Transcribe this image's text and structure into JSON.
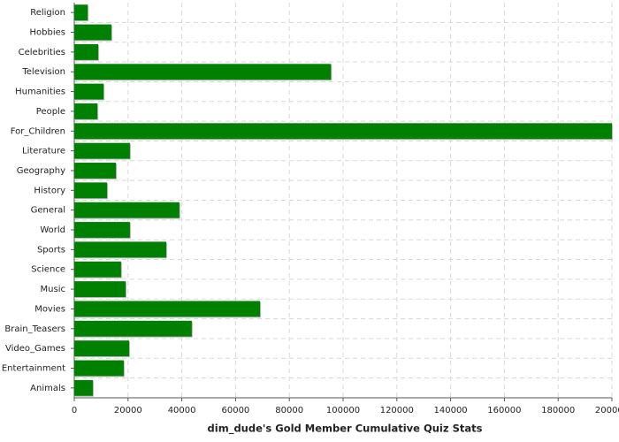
{
  "chart_data": {
    "type": "hbar",
    "title": "dim_dude's Gold Member Cumulative Quiz Stats",
    "categories": [
      "Religion",
      "Hobbies",
      "Celebrities",
      "Television",
      "Humanities",
      "People",
      "For_Children",
      "Literature",
      "Geography",
      "History",
      "General",
      "World",
      "Sports",
      "Science",
      "Music",
      "Movies",
      "Brain_Teasers",
      "Video_Games",
      "Entertainment",
      "Animals"
    ],
    "values": [
      5000,
      13800,
      8900,
      95500,
      10900,
      8600,
      200000,
      20700,
      15500,
      12200,
      39100,
      20700,
      34200,
      17400,
      19100,
      69100,
      43700,
      20400,
      18400,
      6900
    ],
    "color": "#008000",
    "xlim": [
      0,
      200000
    ],
    "xticks": [
      0,
      20000,
      40000,
      60000,
      80000,
      100000,
      120000,
      140000,
      160000,
      180000,
      200000
    ],
    "grid": true
  }
}
